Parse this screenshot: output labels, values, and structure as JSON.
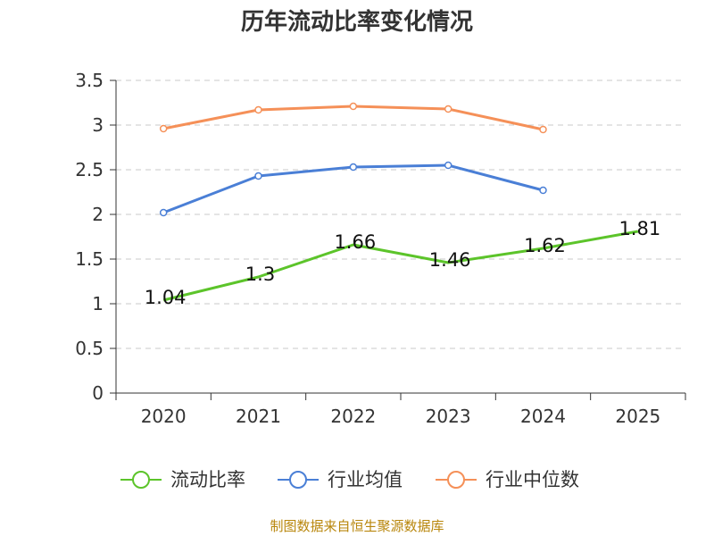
{
  "chart_data": {
    "type": "line",
    "title": "历年流动比率变化情况",
    "categories": [
      "2020",
      "2021",
      "2022",
      "2023",
      "2024",
      "2025"
    ],
    "ylim": [
      0,
      3.5
    ],
    "yticks": [
      0,
      0.5,
      1,
      1.5,
      2,
      2.5,
      3,
      3.5
    ],
    "ytick_labels": [
      "0",
      "0.5",
      "1",
      "1.5",
      "2",
      "2.5",
      "3",
      "3.5"
    ],
    "grid": true,
    "legend_position": "bottom",
    "series": [
      {
        "name": "流动比率",
        "color": "#5cc42a",
        "values": [
          1.04,
          1.3,
          1.66,
          1.46,
          1.62,
          1.81
        ],
        "labels": [
          "1.04",
          "1.3",
          "1.66",
          "1.46",
          "1.62",
          "1.81"
        ],
        "show_labels": true,
        "show_markers": false
      },
      {
        "name": "行业均值",
        "color": "#4a7fd6",
        "values": [
          2.02,
          2.43,
          2.53,
          2.55,
          2.27,
          null
        ],
        "show_labels": false,
        "show_markers": true
      },
      {
        "name": "行业中位数",
        "color": "#f59058",
        "values": [
          2.96,
          3.17,
          3.21,
          3.18,
          2.95,
          null
        ],
        "show_labels": false,
        "show_markers": true
      }
    ]
  },
  "source_note": "制图数据来自恒生聚源数据库"
}
